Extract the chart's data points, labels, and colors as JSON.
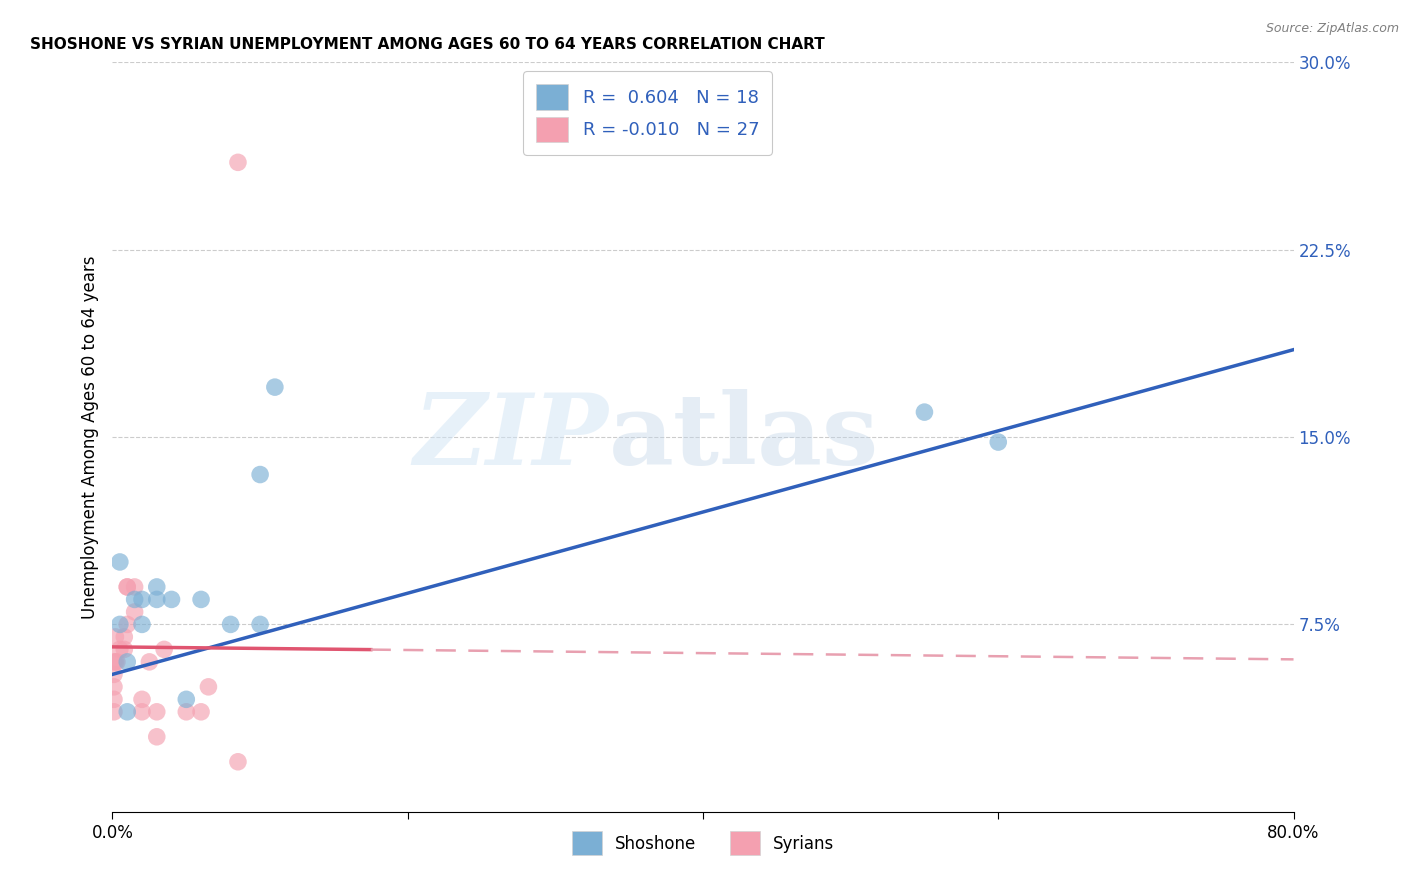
{
  "title": "SHOSHONE VS SYRIAN UNEMPLOYMENT AMONG AGES 60 TO 64 YEARS CORRELATION CHART",
  "source": "Source: ZipAtlas.com",
  "ylabel": "Unemployment Among Ages 60 to 64 years",
  "xlim": [
    0.0,
    0.8
  ],
  "ylim": [
    0.0,
    0.3
  ],
  "xticks": [
    0.0,
    0.2,
    0.4,
    0.6,
    0.8
  ],
  "xticklabels": [
    "0.0%",
    "",
    "",
    "",
    "80.0%"
  ],
  "yticks_right": [
    0.0,
    0.075,
    0.15,
    0.225,
    0.3
  ],
  "ytick_right_labels": [
    "",
    "7.5%",
    "15.0%",
    "22.5%",
    "30.0%"
  ],
  "shoshone_color": "#7bafd4",
  "syrian_color": "#f4a0b0",
  "shoshone_line_color": "#3060bb",
  "syrian_line_color": "#e05570",
  "syrian_line_dashed_color": "#e8a0b0",
  "background_color": "#ffffff",
  "grid_color": "#cccccc",
  "legend_R_shoshone": "0.604",
  "legend_N_shoshone": "18",
  "legend_R_syrian": "-0.010",
  "legend_N_syrian": "27",
  "watermark_zip": "ZIP",
  "watermark_atlas": "atlas",
  "shoshone_line_x0": 0.0,
  "shoshone_line_y0": 0.055,
  "shoshone_line_x1": 0.8,
  "shoshone_line_y1": 0.185,
  "syrian_line_x0": 0.0,
  "syrian_line_y0": 0.066,
  "syrian_line_x1": 0.8,
  "syrian_line_y1": 0.061,
  "syrian_cutoff": 0.175,
  "shoshone_x": [
    0.005,
    0.005,
    0.01,
    0.01,
    0.015,
    0.02,
    0.02,
    0.03,
    0.03,
    0.04,
    0.05,
    0.06,
    0.08,
    0.1,
    0.1,
    0.55,
    0.6,
    0.11
  ],
  "shoshone_y": [
    0.075,
    0.1,
    0.06,
    0.04,
    0.085,
    0.085,
    0.075,
    0.09,
    0.085,
    0.085,
    0.045,
    0.085,
    0.075,
    0.075,
    0.135,
    0.16,
    0.148,
    0.17
  ],
  "syrian_x": [
    0.001,
    0.001,
    0.001,
    0.001,
    0.001,
    0.002,
    0.002,
    0.003,
    0.005,
    0.008,
    0.008,
    0.01,
    0.01,
    0.01,
    0.015,
    0.015,
    0.02,
    0.02,
    0.025,
    0.03,
    0.03,
    0.035,
    0.05,
    0.06,
    0.065,
    0.085,
    0.085
  ],
  "syrian_y": [
    0.04,
    0.045,
    0.05,
    0.055,
    0.06,
    0.06,
    0.07,
    0.06,
    0.065,
    0.065,
    0.07,
    0.075,
    0.09,
    0.09,
    0.08,
    0.09,
    0.04,
    0.045,
    0.06,
    0.04,
    0.03,
    0.065,
    0.04,
    0.04,
    0.05,
    0.02,
    0.26
  ]
}
